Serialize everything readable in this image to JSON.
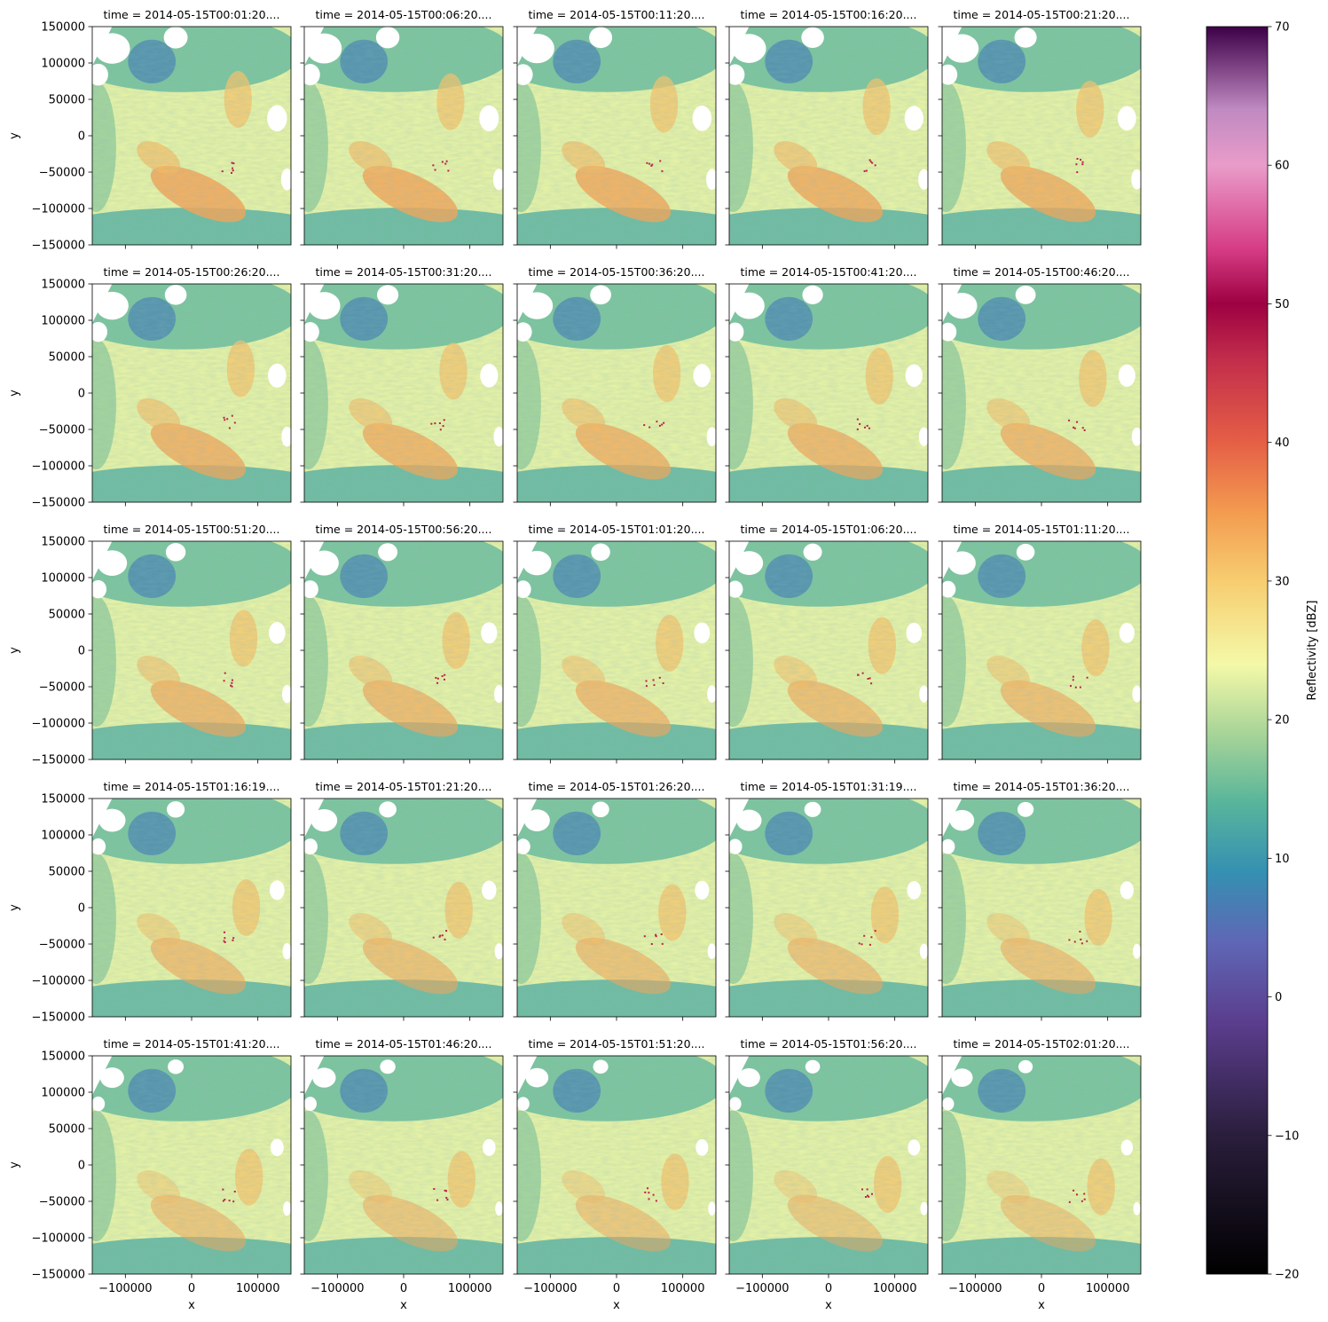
{
  "chart_data": {
    "type": "heatmap",
    "layout": {
      "rows": 5,
      "cols": 5,
      "sharex": true,
      "sharey": true
    },
    "xlabel": "x",
    "ylabel": "y",
    "xlim": [
      -150000,
      150000
    ],
    "ylim": [
      -150000,
      150000
    ],
    "xticks": [
      -100000,
      0,
      100000
    ],
    "xtick_labels": [
      "−100000",
      "0",
      "100000"
    ],
    "yticks": [
      150000,
      100000,
      50000,
      0,
      -50000,
      -100000,
      -150000
    ],
    "ytick_labels": [
      "150000",
      "100000",
      "50000",
      "0",
      "−50000",
      "−100000",
      "−150000"
    ],
    "panels": [
      {
        "title": "time = 2014-05-15T00:01:20...."
      },
      {
        "title": "time = 2014-05-15T00:06:20...."
      },
      {
        "title": "time = 2014-05-15T00:11:20...."
      },
      {
        "title": "time = 2014-05-15T00:16:20...."
      },
      {
        "title": "time = 2014-05-15T00:21:20...."
      },
      {
        "title": "time = 2014-05-15T00:26:20...."
      },
      {
        "title": "time = 2014-05-15T00:31:20...."
      },
      {
        "title": "time = 2014-05-15T00:36:20...."
      },
      {
        "title": "time = 2014-05-15T00:41:20...."
      },
      {
        "title": "time = 2014-05-15T00:46:20...."
      },
      {
        "title": "time = 2014-05-15T00:51:20...."
      },
      {
        "title": "time = 2014-05-15T00:56:20...."
      },
      {
        "title": "time = 2014-05-15T01:01:20...."
      },
      {
        "title": "time = 2014-05-15T01:06:20...."
      },
      {
        "title": "time = 2014-05-15T01:11:20...."
      },
      {
        "title": "time = 2014-05-15T01:16:19...."
      },
      {
        "title": "time = 2014-05-15T01:21:20...."
      },
      {
        "title": "time = 2014-05-15T01:26:20...."
      },
      {
        "title": "time = 2014-05-15T01:31:19...."
      },
      {
        "title": "time = 2014-05-15T01:36:20...."
      },
      {
        "title": "time = 2014-05-15T01:41:20...."
      },
      {
        "title": "time = 2014-05-15T01:46:20...."
      },
      {
        "title": "time = 2014-05-15T01:51:20...."
      },
      {
        "title": "time = 2014-05-15T01:56:20...."
      },
      {
        "title": "time = 2014-05-15T02:01:20...."
      }
    ],
    "colorbar": {
      "label": "Reflectivity [dBZ]",
      "vmin": -20,
      "vmax": 70,
      "ticks": [
        -20,
        -10,
        0,
        10,
        20,
        30,
        40,
        50,
        60,
        70
      ],
      "tick_labels": [
        "−20",
        "−10",
        "0",
        "10",
        "20",
        "30",
        "40",
        "50",
        "60",
        "70"
      ],
      "colormap_stops": [
        {
          "value": -20,
          "color": "#000000"
        },
        {
          "value": -10,
          "color": "#2a1e3c"
        },
        {
          "value": -2,
          "color": "#5a3d8c"
        },
        {
          "value": 4,
          "color": "#5f67b6"
        },
        {
          "value": 9,
          "color": "#3590b2"
        },
        {
          "value": 14,
          "color": "#58b59b"
        },
        {
          "value": 19,
          "color": "#a8d498"
        },
        {
          "value": 24,
          "color": "#f4f9a8"
        },
        {
          "value": 30,
          "color": "#f7cd70"
        },
        {
          "value": 35,
          "color": "#f39b50"
        },
        {
          "value": 40,
          "color": "#e55f46"
        },
        {
          "value": 46,
          "color": "#c22d4b"
        },
        {
          "value": 50,
          "color": "#9e0142"
        },
        {
          "value": 54,
          "color": "#d63d85"
        },
        {
          "value": 60,
          "color": "#e99cc9"
        },
        {
          "value": 64,
          "color": "#c08ac2"
        },
        {
          "value": 70,
          "color": "#3d0048"
        }
      ]
    }
  }
}
